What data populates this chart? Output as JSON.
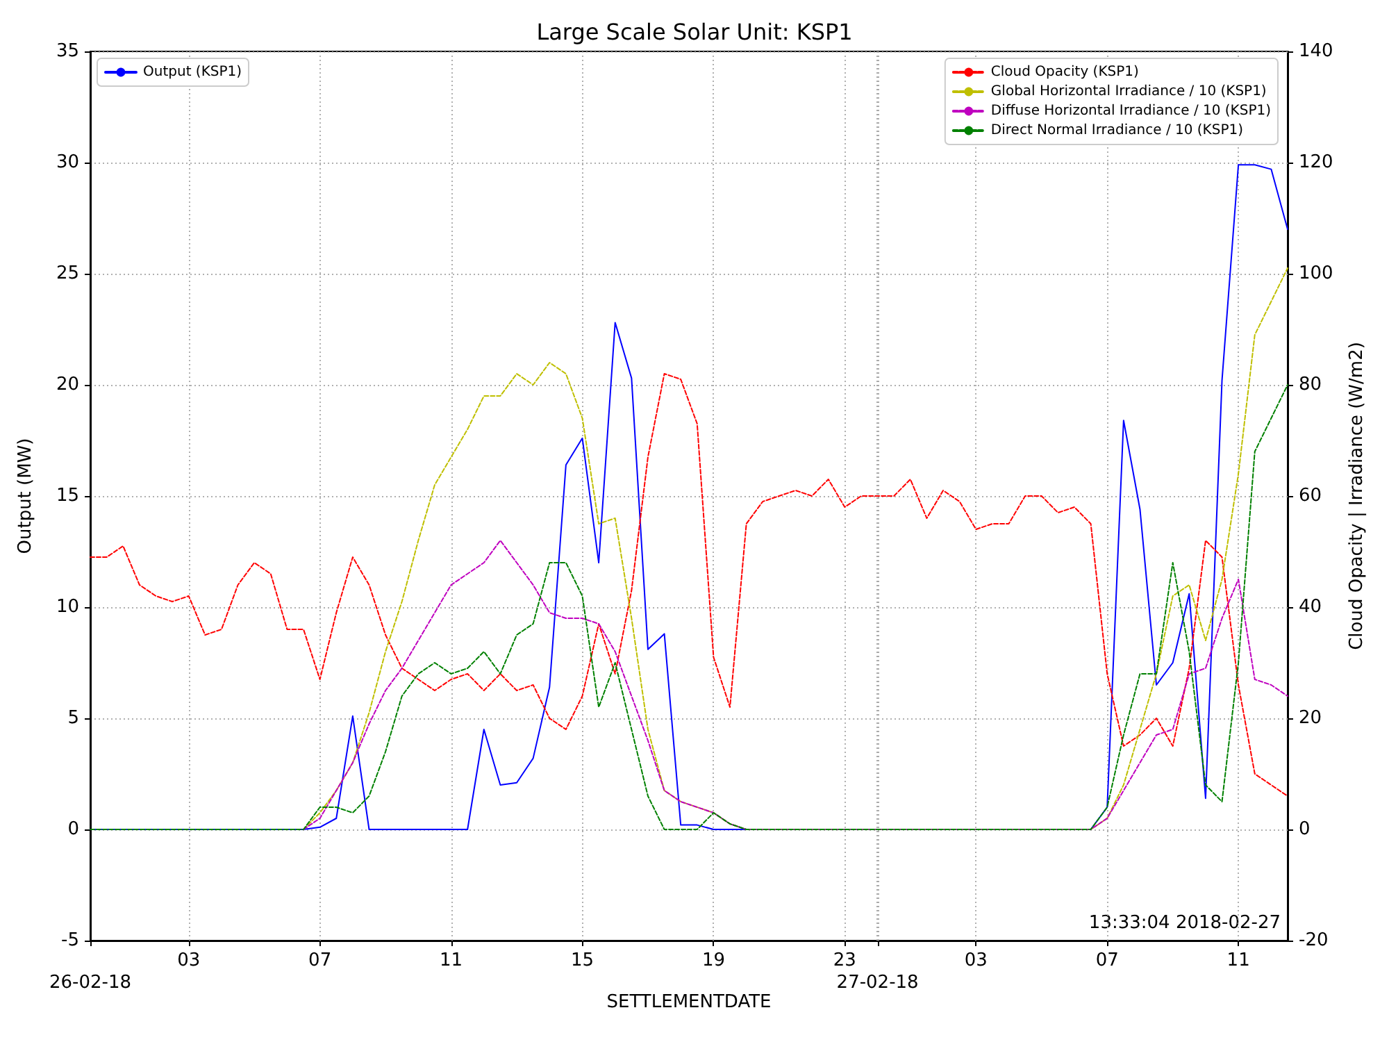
{
  "chart_data": {
    "type": "line",
    "title": "Large Scale Solar Unit: KSP1",
    "xlabel": "SETTLEMENTDATE",
    "ylabel": "Output (MW)",
    "y2label": "Cloud Opacity | Irradiance (W/m2)",
    "x": [
      "2018-02-26T00:00",
      "2018-02-26T00:30",
      "2018-02-26T01:00",
      "2018-02-26T01:30",
      "2018-02-26T02:00",
      "2018-02-26T02:30",
      "2018-02-26T03:00",
      "2018-02-26T03:30",
      "2018-02-26T04:00",
      "2018-02-26T04:30",
      "2018-02-26T05:00",
      "2018-02-26T05:30",
      "2018-02-26T06:00",
      "2018-02-26T06:30",
      "2018-02-26T07:00",
      "2018-02-26T07:30",
      "2018-02-26T08:00",
      "2018-02-26T08:30",
      "2018-02-26T09:00",
      "2018-02-26T09:30",
      "2018-02-26T10:00",
      "2018-02-26T10:30",
      "2018-02-26T11:00",
      "2018-02-26T11:30",
      "2018-02-26T12:00",
      "2018-02-26T12:30",
      "2018-02-26T13:00",
      "2018-02-26T13:30",
      "2018-02-26T14:00",
      "2018-02-26T14:30",
      "2018-02-26T15:00",
      "2018-02-26T15:30",
      "2018-02-26T16:00",
      "2018-02-26T16:30",
      "2018-02-26T17:00",
      "2018-02-26T17:30",
      "2018-02-26T18:00",
      "2018-02-26T18:30",
      "2018-02-26T19:00",
      "2018-02-26T19:30",
      "2018-02-26T20:00",
      "2018-02-26T20:30",
      "2018-02-26T21:00",
      "2018-02-26T21:30",
      "2018-02-26T22:00",
      "2018-02-26T22:30",
      "2018-02-26T23:00",
      "2018-02-26T23:30",
      "2018-02-27T00:00",
      "2018-02-27T00:30",
      "2018-02-27T01:00",
      "2018-02-27T01:30",
      "2018-02-27T02:00",
      "2018-02-27T02:30",
      "2018-02-27T03:00",
      "2018-02-27T03:30",
      "2018-02-27T04:00",
      "2018-02-27T04:30",
      "2018-02-27T05:00",
      "2018-02-27T05:30",
      "2018-02-27T06:00",
      "2018-02-27T06:30",
      "2018-02-27T07:00",
      "2018-02-27T07:30",
      "2018-02-27T08:00",
      "2018-02-27T08:30",
      "2018-02-27T09:00",
      "2018-02-27T09:30",
      "2018-02-27T10:00",
      "2018-02-27T10:30",
      "2018-02-27T11:00",
      "2018-02-27T11:30",
      "2018-02-27T12:00",
      "2018-02-27T12:30"
    ],
    "series": [
      {
        "name": "Output (KSP1)",
        "color": "#0000ff",
        "line_style": "solid",
        "values": [
          0,
          0,
          0,
          0,
          0,
          0,
          0,
          0,
          0,
          0,
          0,
          0,
          0,
          0,
          0.1,
          0.5,
          5.1,
          0,
          0,
          0,
          0,
          0,
          0,
          0,
          4.5,
          2.0,
          2.1,
          3.2,
          6.4,
          16.4,
          17.6,
          12.0,
          22.8,
          20.3,
          8.1,
          8.8,
          0.2,
          0.2,
          0,
          0,
          0,
          0,
          0,
          0,
          0,
          0,
          0,
          0,
          0,
          0,
          0,
          0,
          0,
          0,
          0,
          0,
          0,
          0,
          0,
          0,
          0,
          0,
          1.0,
          18.4,
          14.4,
          6.5,
          7.5,
          10.6,
          1.4,
          20.2,
          29.9,
          29.9,
          29.7,
          27.0
        ]
      },
      {
        "name": "Cloud Opacity (KSP1)",
        "color": "#ff0000",
        "axis": "y2",
        "values": [
          49,
          49,
          51,
          44,
          42,
          41,
          42,
          35,
          36,
          44,
          48,
          46,
          36,
          36,
          27,
          39,
          49,
          44,
          35,
          29,
          27,
          25,
          27,
          28,
          25,
          28,
          25,
          26,
          20,
          18,
          24,
          37,
          28,
          43,
          67,
          82,
          81,
          73,
          31,
          22,
          55,
          59,
          60,
          61,
          60,
          63,
          58,
          60,
          60,
          60,
          63,
          56,
          61,
          59,
          54,
          55,
          55,
          60,
          60,
          57,
          58,
          55,
          28,
          15,
          17,
          20,
          15,
          29,
          52,
          49,
          26,
          10,
          8,
          6
        ]
      },
      {
        "name": "Global Horizontal Irradiance / 10 (KSP1)",
        "color": "#bfbf00",
        "axis": "y2",
        "values": [
          null,
          null,
          null,
          null,
          null,
          null,
          null,
          null,
          null,
          null,
          null,
          null,
          null,
          0,
          3,
          7,
          12,
          21,
          32,
          41,
          52,
          62,
          67,
          72,
          78,
          78,
          82,
          80,
          84,
          82,
          74,
          55,
          56,
          38,
          18,
          7,
          5,
          4,
          3,
          1,
          0,
          0,
          0,
          0,
          0,
          0,
          0,
          0,
          0,
          0,
          0,
          0,
          0,
          0,
          0,
          0,
          0,
          0,
          0,
          0,
          0,
          0,
          2,
          8,
          18,
          28,
          42,
          44,
          34,
          45,
          64,
          89,
          95,
          101
        ]
      },
      {
        "name": "Diffuse Horizontal Irradiance / 10 (KSP1)",
        "color": "#bf00bf",
        "axis": "y2",
        "values": [
          null,
          null,
          null,
          null,
          null,
          null,
          null,
          null,
          null,
          null,
          null,
          null,
          null,
          0,
          2,
          7,
          12,
          19,
          25,
          29,
          34,
          39,
          44,
          46,
          48,
          52,
          48,
          44,
          39,
          38,
          38,
          37,
          32,
          24,
          16,
          7,
          5,
          4,
          3,
          1,
          0,
          0,
          0,
          0,
          0,
          0,
          0,
          0,
          0,
          0,
          0,
          0,
          0,
          0,
          0,
          0,
          0,
          0,
          0,
          0,
          0,
          0,
          2,
          7,
          12,
          17,
          18,
          28,
          29,
          38,
          45,
          27,
          26,
          24
        ]
      },
      {
        "name": "Direct Normal Irradiance / 10 (KSP1)",
        "color": "#008000",
        "axis": "y2",
        "values": [
          0,
          0,
          0,
          0,
          0,
          0,
          0,
          0,
          0,
          0,
          0,
          0,
          0,
          0,
          4,
          4,
          3,
          6,
          14,
          24,
          28,
          30,
          28,
          29,
          32,
          28,
          35,
          37,
          48,
          48,
          42,
          22,
          30,
          18,
          6,
          0,
          0,
          0,
          3,
          1,
          0,
          0,
          0,
          0,
          0,
          0,
          0,
          0,
          0,
          0,
          0,
          0,
          0,
          0,
          0,
          0,
          0,
          0,
          0,
          0,
          0,
          0,
          4,
          17,
          28,
          28,
          48,
          32,
          8,
          5,
          30,
          68,
          74,
          80
        ]
      }
    ],
    "xlim": [
      "2018-02-26T00:00",
      "2018-02-27T12:30"
    ],
    "xticks": [
      {
        "value": "2018-02-26T00:00",
        "label": null
      },
      {
        "value": "2018-02-26T03:00",
        "label": "03"
      },
      {
        "value": "2018-02-26T07:00",
        "label": "07"
      },
      {
        "value": "2018-02-26T11:00",
        "label": "11"
      },
      {
        "value": "2018-02-26T15:00",
        "label": "15"
      },
      {
        "value": "2018-02-26T19:00",
        "label": "19"
      },
      {
        "value": "2018-02-26T23:00",
        "label": "23"
      },
      {
        "value": "2018-02-27T00:00",
        "label": null
      },
      {
        "value": "2018-02-27T03:00",
        "label": "03"
      },
      {
        "value": "2018-02-27T07:00",
        "label": "07"
      },
      {
        "value": "2018-02-27T11:00",
        "label": "11"
      }
    ],
    "ylim": [
      -5,
      35
    ],
    "yticks": [
      -5,
      0,
      5,
      10,
      15,
      20,
      25,
      30,
      35
    ],
    "y2lim": [
      -20,
      140
    ],
    "y2ticks": [
      -20,
      0,
      20,
      40,
      60,
      80,
      100,
      120,
      140
    ],
    "ref_lines": [
      {
        "axis": "x",
        "value": "2018-02-27T00:00",
        "color": "#aaaaaa",
        "line_style": "dotted"
      }
    ],
    "annotations": [
      "26-02-18",
      "27-02-18",
      "13:33:04 2018-02-27"
    ],
    "line_style": "dashed",
    "grid": true,
    "legend": "top right"
  }
}
